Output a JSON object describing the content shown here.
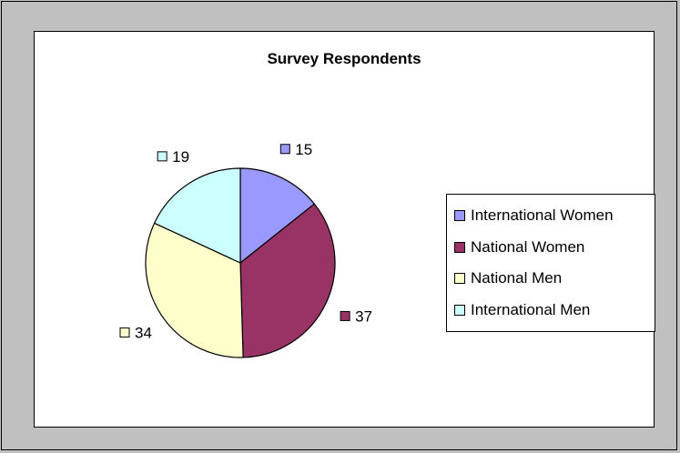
{
  "chart_data": {
    "type": "pie",
    "title": "Survey Respondents",
    "categories": [
      "International Women",
      "National Women",
      "National Men",
      "International Men"
    ],
    "values": [
      15,
      37,
      34,
      19
    ],
    "colors": [
      "#9999ff",
      "#993366",
      "#ffffcc",
      "#ccffff"
    ],
    "legend_position": "right",
    "data_labels": true,
    "start_angle_deg": 0,
    "direction": "clockwise"
  }
}
